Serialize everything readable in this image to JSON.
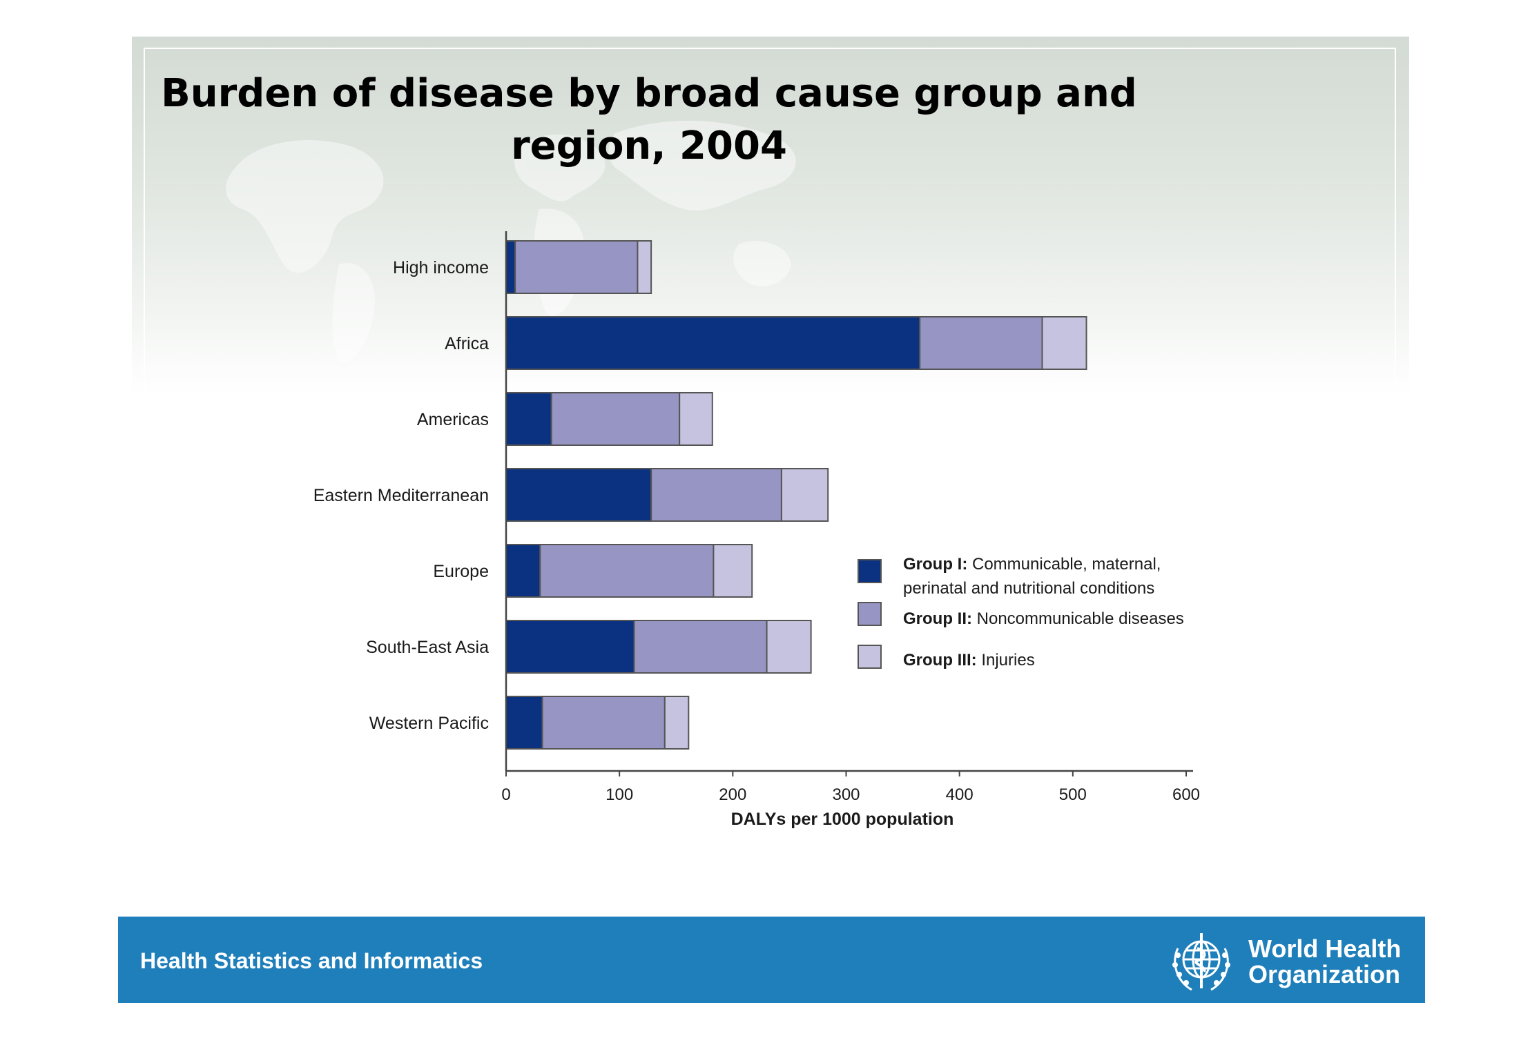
{
  "title_lines": [
    "Burden of disease by broad cause group and",
    "region, 2004"
  ],
  "footer": {
    "text": "Health Statistics and Informatics",
    "org_name_lines": [
      "World Health",
      "Organization"
    ],
    "logo_icon": "who-emblem-icon",
    "background_color": "#1f7fba"
  },
  "chart_data": {
    "type": "bar",
    "orientation": "horizontal",
    "stacked": true,
    "categories": [
      "High income",
      "Africa",
      "Americas",
      "Eastern Mediterranean",
      "Europe",
      "South-East Asia",
      "Western Pacific"
    ],
    "series": [
      {
        "name": "Group I",
        "description": "Communicable, maternal, perinatal and nutritional conditions",
        "color": "#0b3181",
        "values": [
          8,
          365,
          40,
          128,
          30,
          113,
          32
        ]
      },
      {
        "name": "Group II",
        "description": "Noncommunicable diseases",
        "color": "#9795c3",
        "values": [
          108,
          108,
          113,
          115,
          153,
          117,
          108
        ]
      },
      {
        "name": "Group III",
        "description": "Injuries",
        "color": "#c5c3df",
        "values": [
          12,
          39,
          29,
          41,
          34,
          39,
          21
        ]
      }
    ],
    "xlabel": "DALYs per 1000 population",
    "xlim": [
      0,
      600
    ],
    "xticks": [
      0,
      100,
      200,
      300,
      400,
      500,
      600
    ],
    "grid": false,
    "legend_position": "right-middle"
  }
}
